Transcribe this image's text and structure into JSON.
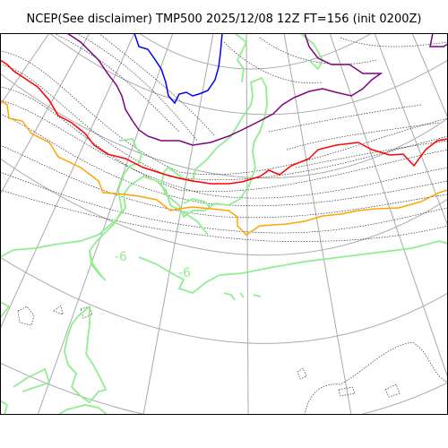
{
  "title": "NCEP(See disclaimer) TMP500 2025/12/08 12Z FT=156 (init 0200Z)",
  "contour_labels": [
    "-6",
    "-6"
  ],
  "colors": {
    "grid": "#aaaaaa",
    "coastline": "#90ee90",
    "isotherm_minus6": "#90ee90",
    "isotherm_orange": "#ffa500",
    "isotherm_red": "#ff0000",
    "isotherm_purple": "#800080",
    "isotherm_blue": "#0000ff",
    "minor_contours": "#333333"
  }
}
